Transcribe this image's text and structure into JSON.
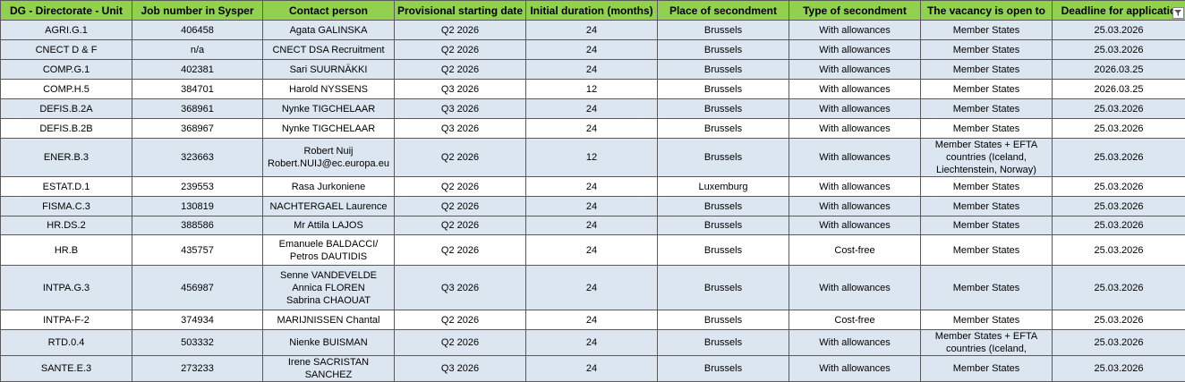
{
  "table": {
    "headers": [
      "DG - Directorate - Unit",
      "Job number in Sysper",
      "Contact person",
      "Provisional starting date",
      "Initial duration (months)",
      "Place of secondment",
      "Type of secondment",
      "The vacancy is open to",
      "Deadline for applicatio"
    ],
    "rows": [
      [
        "AGRI.G.1",
        "406458",
        "Agata GALINSKA",
        "Q2 2026",
        "24",
        "Brussels",
        "With allowances",
        "Member States",
        "25.03.2026"
      ],
      [
        "CNECT D & F",
        "n/a",
        "CNECT DSA Recruitment",
        "Q2 2026",
        "24",
        "Brussels",
        "With allowances",
        "Member States",
        "25.03.2026"
      ],
      [
        "COMP.G.1",
        "402381",
        "Sari SUURNÄKKI",
        "Q2 2026",
        "24",
        "Brussels",
        "With allowances",
        "Member States",
        "2026.03.25"
      ],
      [
        "COMP.H.5",
        "384701",
        "Harold NYSSENS",
        "Q3 2026",
        "12",
        "Brussels",
        "With allowances",
        "Member States",
        "2026.03.25"
      ],
      [
        "DEFIS.B.2A",
        "368961",
        "Nynke TIGCHELAAR",
        "Q3 2026",
        "24",
        "Brussels",
        "With allowances",
        "Member States",
        "25.03.2026"
      ],
      [
        "DEFIS.B.2B",
        "368967",
        "Nynke TIGCHELAAR",
        "Q3 2026",
        "24",
        "Brussels",
        "With allowances",
        "Member States",
        "25.03.2026"
      ],
      [
        "ENER.B.3",
        "323663",
        "Robert Nuij\nRobert.NUIJ@ec.europa.eu",
        "Q2 2026",
        "12",
        "Brussels",
        "With allowances",
        "Member States + EFTA countries (Iceland, Liechtenstein, Norway)",
        "25.03.2026"
      ],
      [
        "ESTAT.D.1",
        "239553",
        "Rasa Jurkoniene",
        "Q2 2026",
        "24",
        "Luxemburg",
        "With allowances",
        "Member States",
        "25.03.2026"
      ],
      [
        "FISMA.C.3",
        "130819",
        "NACHTERGAEL Laurence",
        "Q2 2026",
        "24",
        "Brussels",
        "With allowances",
        "Member States",
        "25.03.2026"
      ],
      [
        "HR.DS.2",
        "388586",
        "Mr Attila LAJOS",
        "Q2 2026",
        "24",
        "Brussels",
        "With allowances",
        "Member States",
        "25.03.2026"
      ],
      [
        "HR.B",
        "435757",
        "Emanuele BALDACCI/ Petros DAUTIDIS",
        "Q2 2026",
        "24",
        "Brussels",
        "Cost-free",
        "Member States",
        "25.03.2026"
      ],
      [
        "INTPA.G.3",
        "456987",
        "Senne VANDEVELDE\nAnnica FLOREN\nSabrina CHAOUAT",
        "Q3 2026",
        "24",
        "Brussels",
        "With allowances",
        "Member States",
        "25.03.2026"
      ],
      [
        "INTPA-F-2",
        "374934",
        "MARIJNISSEN Chantal",
        "Q2 2026",
        "24",
        "Brussels",
        "Cost-free",
        "Member States",
        "25.03.2026"
      ],
      [
        "RTD.0.4",
        "503332",
        "Nienke BUISMAN",
        "Q2 2026",
        "24",
        "Brussels",
        "With allowances",
        "Member States + EFTA countries (Iceland,",
        "25.03.2026"
      ],
      [
        "SANTE.E.3",
        "273233",
        "Irene SACRISTAN SANCHEZ",
        "Q3 2026",
        "24",
        "Brussels",
        "With allowances",
        "Member States",
        "25.03.2026"
      ]
    ]
  }
}
